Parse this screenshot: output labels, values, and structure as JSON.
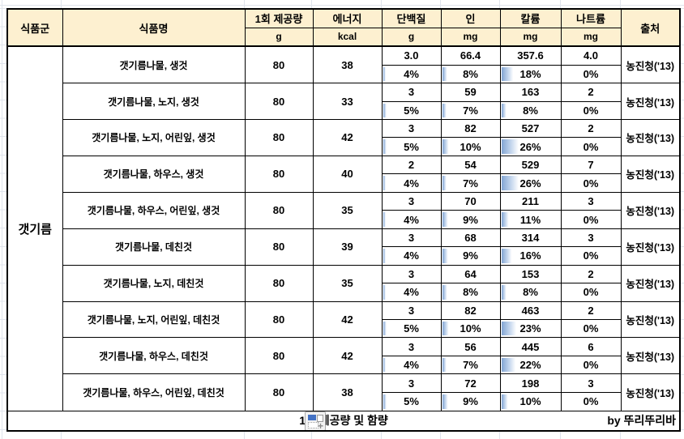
{
  "header": {
    "col_food_group": "식품군",
    "col_food_name": "식품명",
    "col_serving": "1회 제공량",
    "col_energy": "에너지",
    "col_protein": "단백질",
    "col_phosphorus": "인",
    "col_potassium": "칼륨",
    "col_sodium": "나트륨",
    "col_source": "출처",
    "unit_serving": "g",
    "unit_energy": "kcal",
    "unit_protein": "g",
    "unit_phosphorus": "mg",
    "unit_potassium": "mg",
    "unit_sodium": "mg"
  },
  "food_group": "갯기름",
  "rows": [
    {
      "name": "갯기름나물, 생것",
      "serving": "80",
      "energy": "38",
      "protein": {
        "value": "3.0",
        "pct": 4,
        "pct_label": "4%"
      },
      "phosphorus": {
        "value": "66.4",
        "pct": 8,
        "pct_label": "8%"
      },
      "potassium": {
        "value": "357.6",
        "pct": 18,
        "pct_label": "18%"
      },
      "sodium": {
        "value": "4.0",
        "pct": 0,
        "pct_label": "0%"
      },
      "source": "농진청('13)"
    },
    {
      "name": "갯기름나물, 노지, 생것",
      "serving": "80",
      "energy": "33",
      "protein": {
        "value": "3",
        "pct": 5,
        "pct_label": "5%"
      },
      "phosphorus": {
        "value": "59",
        "pct": 7,
        "pct_label": "7%"
      },
      "potassium": {
        "value": "163",
        "pct": 8,
        "pct_label": "8%"
      },
      "sodium": {
        "value": "2",
        "pct": 0,
        "pct_label": "0%"
      },
      "source": "농진청('13)"
    },
    {
      "name": "갯기름나물, 노지, 어린잎, 생것",
      "serving": "80",
      "energy": "42",
      "protein": {
        "value": "3",
        "pct": 5,
        "pct_label": "5%"
      },
      "phosphorus": {
        "value": "82",
        "pct": 10,
        "pct_label": "10%"
      },
      "potassium": {
        "value": "527",
        "pct": 26,
        "pct_label": "26%"
      },
      "sodium": {
        "value": "2",
        "pct": 0,
        "pct_label": "0%"
      },
      "source": "농진청('13)"
    },
    {
      "name": "갯기름나물, 하우스, 생것",
      "serving": "80",
      "energy": "40",
      "protein": {
        "value": "2",
        "pct": 4,
        "pct_label": "4%"
      },
      "phosphorus": {
        "value": "54",
        "pct": 7,
        "pct_label": "7%"
      },
      "potassium": {
        "value": "529",
        "pct": 26,
        "pct_label": "26%"
      },
      "sodium": {
        "value": "7",
        "pct": 0,
        "pct_label": "0%"
      },
      "source": "농진청('13)"
    },
    {
      "name": "갯기름나물, 하우스, 어린잎, 생것",
      "serving": "80",
      "energy": "35",
      "protein": {
        "value": "3",
        "pct": 4,
        "pct_label": "4%"
      },
      "phosphorus": {
        "value": "70",
        "pct": 9,
        "pct_label": "9%"
      },
      "potassium": {
        "value": "211",
        "pct": 11,
        "pct_label": "11%"
      },
      "sodium": {
        "value": "3",
        "pct": 0,
        "pct_label": "0%"
      },
      "source": "농진청('13)"
    },
    {
      "name": "갯기름나물, 데친것",
      "serving": "80",
      "energy": "39",
      "protein": {
        "value": "3",
        "pct": 4,
        "pct_label": "4%"
      },
      "phosphorus": {
        "value": "68",
        "pct": 9,
        "pct_label": "9%"
      },
      "potassium": {
        "value": "314",
        "pct": 16,
        "pct_label": "16%"
      },
      "sodium": {
        "value": "3",
        "pct": 0,
        "pct_label": "0%"
      },
      "source": "농진청('13)"
    },
    {
      "name": "갯기름나물, 노지, 데친것",
      "serving": "80",
      "energy": "35",
      "protein": {
        "value": "3",
        "pct": 4,
        "pct_label": "4%"
      },
      "phosphorus": {
        "value": "64",
        "pct": 8,
        "pct_label": "8%"
      },
      "potassium": {
        "value": "153",
        "pct": 8,
        "pct_label": "8%"
      },
      "sodium": {
        "value": "2",
        "pct": 0,
        "pct_label": "0%"
      },
      "source": "농진청('13)"
    },
    {
      "name": "갯기름나물, 노지, 어린잎, 데친것",
      "serving": "80",
      "energy": "42",
      "protein": {
        "value": "3",
        "pct": 5,
        "pct_label": "5%"
      },
      "phosphorus": {
        "value": "82",
        "pct": 10,
        "pct_label": "10%"
      },
      "potassium": {
        "value": "463",
        "pct": 23,
        "pct_label": "23%"
      },
      "sodium": {
        "value": "2",
        "pct": 0,
        "pct_label": "0%"
      },
      "source": "농진청('13)"
    },
    {
      "name": "갯기름나물, 하우스, 데친것",
      "serving": "80",
      "energy": "42",
      "protein": {
        "value": "3",
        "pct": 4,
        "pct_label": "4%"
      },
      "phosphorus": {
        "value": "56",
        "pct": 7,
        "pct_label": "7%"
      },
      "potassium": {
        "value": "445",
        "pct": 22,
        "pct_label": "22%"
      },
      "sodium": {
        "value": "6",
        "pct": 0,
        "pct_label": "0%"
      },
      "source": "농진청('13)"
    },
    {
      "name": "갯기름나물, 하우스, 어린잎, 데친것",
      "serving": "80",
      "energy": "38",
      "protein": {
        "value": "3",
        "pct": 5,
        "pct_label": "5%"
      },
      "phosphorus": {
        "value": "72",
        "pct": 9,
        "pct_label": "9%"
      },
      "potassium": {
        "value": "198",
        "pct": 10,
        "pct_label": "10%"
      },
      "sodium": {
        "value": "3",
        "pct": 0,
        "pct_label": "0%"
      },
      "source": "농진청('13)"
    }
  ],
  "footer": {
    "title": "1회 제공량 및 함량",
    "credit": "by 뚜리뚜리바",
    "icon": "paste-options-icon"
  },
  "colors": {
    "header_bg": "#FDF0D0",
    "bar_dark": "#82A5D3",
    "bar_mid": "#C7D8EE",
    "border": "#000000",
    "gridline": "#E0E4EC"
  }
}
